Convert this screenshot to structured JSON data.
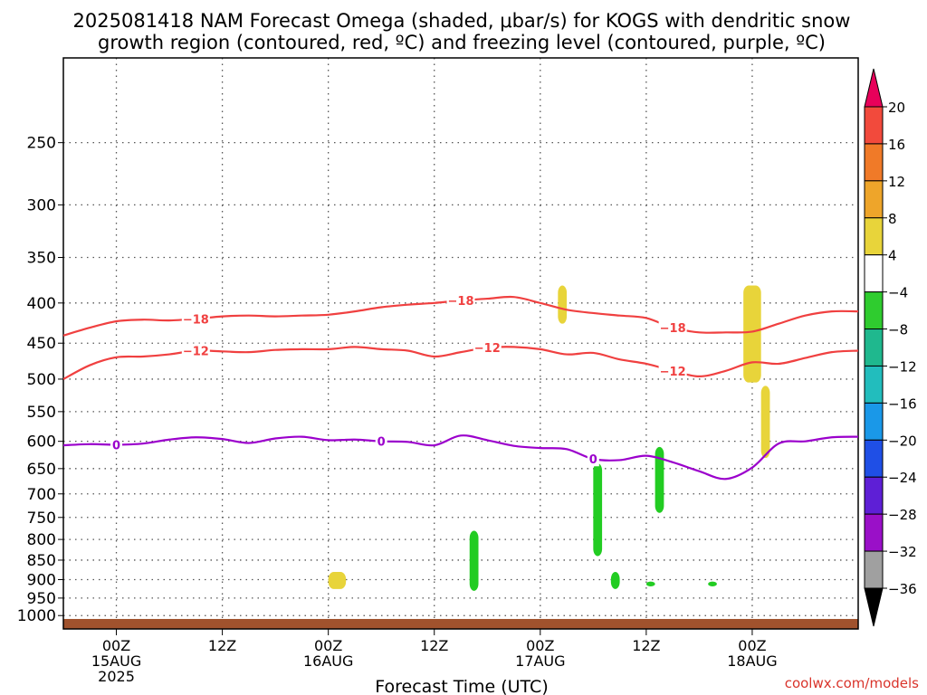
{
  "title_line1": "2025081418 NAM Forecast Omega (shaded, μbar/s) for KOGS with dendritic snow",
  "title_line2": "growth region (contoured, red, ºC) and freezing level (contoured, purple, ºC)",
  "xlabel": "Forecast Time (UTC)",
  "credit": "coolwx.com/models",
  "colors": {
    "dgz": "#f04040",
    "freezing": "#9b00cc",
    "ground": "#a0522d",
    "grid": "#555555"
  },
  "chart_data": {
    "type": "contour-time-height",
    "title": "2025081418 NAM Forecast Omega (shaded, μbar/s) for KOGS with dendritic snow growth region (contoured, red, ºC) and freezing level (contoured, purple, ºC)",
    "xlabel": "Forecast Time (UTC)",
    "ylabel": "",
    "y_scale": "log-pressure (hPa), inverted",
    "ylim": [
      1040,
      195
    ],
    "xlim": [
      "2025-08-14T18Z",
      "2025-08-18T12Z"
    ],
    "y_ticks": [
      250,
      300,
      350,
      400,
      450,
      500,
      550,
      600,
      650,
      700,
      750,
      800,
      850,
      900,
      950,
      1000
    ],
    "x_ticks": [
      {
        "t": "2025-08-15T00Z",
        "label": "00Z",
        "sub1": "15AUG",
        "sub2": "2025"
      },
      {
        "t": "2025-08-15T12Z",
        "label": "12Z",
        "sub1": "",
        "sub2": ""
      },
      {
        "t": "2025-08-16T00Z",
        "label": "00Z",
        "sub1": "16AUG",
        "sub2": ""
      },
      {
        "t": "2025-08-16T12Z",
        "label": "12Z",
        "sub1": "",
        "sub2": ""
      },
      {
        "t": "2025-08-17T00Z",
        "label": "00Z",
        "sub1": "17AUG",
        "sub2": ""
      },
      {
        "t": "2025-08-17T12Z",
        "label": "12Z",
        "sub1": "",
        "sub2": ""
      },
      {
        "t": "2025-08-18T00Z",
        "label": "00Z",
        "sub1": "18AUG",
        "sub2": ""
      }
    ],
    "grid": true,
    "colorbar": {
      "position": "right",
      "levels": [
        20,
        16,
        12,
        8,
        4,
        -4,
        -8,
        -12,
        -16,
        -20,
        -24,
        -28,
        -32,
        -36
      ],
      "colors": [
        "#e8005a",
        "#f24a3c",
        "#f07a28",
        "#eea52a",
        "#e8d43a",
        "#ffffff",
        "#2fcc2f",
        "#1fb88e",
        "#22bdbd",
        "#1a98e8",
        "#1f4fe6",
        "#5e1fd6",
        "#9a10c8",
        "#a0a0a0"
      ],
      "bottom_color": "#000000",
      "top_color": "#e8005a"
    },
    "series": [
      {
        "name": "-18",
        "x": [
          "2025-08-14T18Z",
          "2025-08-14T21Z",
          "2025-08-15T00Z",
          "2025-08-15T03Z",
          "2025-08-15T06Z",
          "2025-08-15T09Z",
          "2025-08-15T12Z",
          "2025-08-15T15Z",
          "2025-08-15T18Z",
          "2025-08-15T21Z",
          "2025-08-16T00Z",
          "2025-08-16T03Z",
          "2025-08-16T06Z",
          "2025-08-16T09Z",
          "2025-08-16T12Z",
          "2025-08-16T15Z",
          "2025-08-16T18Z",
          "2025-08-16T21Z",
          "2025-08-17T00Z",
          "2025-08-17T03Z",
          "2025-08-17T06Z",
          "2025-08-17T09Z",
          "2025-08-17T12Z",
          "2025-08-17T15Z",
          "2025-08-17T18Z",
          "2025-08-17T21Z",
          "2025-08-18T00Z",
          "2025-08-18T03Z",
          "2025-08-18T06Z",
          "2025-08-18T09Z",
          "2025-08-18T12Z"
        ],
        "y": [
          440,
          430,
          422,
          420,
          421,
          419,
          416,
          415,
          416,
          415,
          414,
          410,
          405,
          402,
          400,
          397,
          395,
          393,
          400,
          408,
          412,
          415,
          418,
          430,
          436,
          436,
          435,
          425,
          415,
          410,
          410
        ],
        "labels": [
          {
            "x": "2025-08-15T09Z",
            "text": "-18"
          },
          {
            "x": "2025-08-16T15Z",
            "text": "-18"
          },
          {
            "x": "2025-08-17T15Z",
            "text": "-18"
          }
        ]
      },
      {
        "name": "-12",
        "x": [
          "2025-08-14T18Z",
          "2025-08-14T21Z",
          "2025-08-15T00Z",
          "2025-08-15T03Z",
          "2025-08-15T06Z",
          "2025-08-15T09Z",
          "2025-08-15T12Z",
          "2025-08-15T15Z",
          "2025-08-15T18Z",
          "2025-08-15T21Z",
          "2025-08-16T00Z",
          "2025-08-16T03Z",
          "2025-08-16T06Z",
          "2025-08-16T09Z",
          "2025-08-16T12Z",
          "2025-08-16T15Z",
          "2025-08-16T18Z",
          "2025-08-16T21Z",
          "2025-08-17T00Z",
          "2025-08-17T03Z",
          "2025-08-17T06Z",
          "2025-08-17T09Z",
          "2025-08-17T12Z",
          "2025-08-17T15Z",
          "2025-08-17T18Z",
          "2025-08-17T21Z",
          "2025-08-18T00Z",
          "2025-08-18T03Z",
          "2025-08-18T06Z",
          "2025-08-18T09Z",
          "2025-08-18T12Z"
        ],
        "y": [
          500,
          480,
          469,
          468,
          465,
          460,
          461,
          462,
          459,
          458,
          458,
          455,
          458,
          460,
          468,
          462,
          456,
          455,
          458,
          465,
          463,
          472,
          478,
          488,
          496,
          488,
          476,
          478,
          470,
          462,
          460
        ],
        "labels": [
          {
            "x": "2025-08-15T09Z",
            "text": "-12"
          },
          {
            "x": "2025-08-16T18Z",
            "text": "-12"
          },
          {
            "x": "2025-08-17T15Z",
            "text": "-12"
          }
        ]
      },
      {
        "name": "0",
        "x": [
          "2025-08-14T18Z",
          "2025-08-14T21Z",
          "2025-08-15T00Z",
          "2025-08-15T03Z",
          "2025-08-15T06Z",
          "2025-08-15T09Z",
          "2025-08-15T12Z",
          "2025-08-15T15Z",
          "2025-08-15T18Z",
          "2025-08-15T21Z",
          "2025-08-16T00Z",
          "2025-08-16T03Z",
          "2025-08-16T06Z",
          "2025-08-16T09Z",
          "2025-08-16T12Z",
          "2025-08-16T15Z",
          "2025-08-16T18Z",
          "2025-08-16T21Z",
          "2025-08-17T00Z",
          "2025-08-17T03Z",
          "2025-08-17T06Z",
          "2025-08-17T09Z",
          "2025-08-17T12Z",
          "2025-08-17T15Z",
          "2025-08-17T18Z",
          "2025-08-17T21Z",
          "2025-08-18T00Z",
          "2025-08-18T03Z",
          "2025-08-18T06Z",
          "2025-08-18T09Z",
          "2025-08-18T12Z"
        ],
        "y": [
          607,
          605,
          606,
          604,
          597,
          593,
          596,
          603,
          595,
          592,
          598,
          597,
          600,
          601,
          607,
          590,
          598,
          608,
          612,
          614,
          632,
          634,
          626,
          638,
          655,
          670,
          648,
          604,
          600,
          593,
          592
        ],
        "labels": [
          {
            "x": "2025-08-15T00Z",
            "text": "0"
          },
          {
            "x": "2025-08-16T06Z",
            "text": "0"
          },
          {
            "x": "2025-08-17T06Z",
            "text": "0"
          }
        ]
      }
    ],
    "omega_regions": [
      {
        "value": 4,
        "t_start": "2025-08-16T00Z",
        "t_end": "2025-08-16T02Z",
        "p_top": 880,
        "p_bottom": 925
      },
      {
        "value": -4,
        "t_start": "2025-08-16T16Z",
        "t_end": "2025-08-16T17Z",
        "p_top": 780,
        "p_bottom": 930
      },
      {
        "value": -4,
        "t_start": "2025-08-17T06Z",
        "t_end": "2025-08-17T07Z",
        "p_top": 640,
        "p_bottom": 840
      },
      {
        "value": -4,
        "t_start": "2025-08-17T08Z",
        "t_end": "2025-08-17T09Z",
        "p_top": 880,
        "p_bottom": 925
      },
      {
        "value": -4,
        "t_start": "2025-08-17T13Z",
        "t_end": "2025-08-17T14Z",
        "p_top": 610,
        "p_bottom": 740
      },
      {
        "value": -4,
        "t_start": "2025-08-17T12Z",
        "t_end": "2025-08-17T13Z",
        "p_top": 905,
        "p_bottom": 918
      },
      {
        "value": -4,
        "t_start": "2025-08-17T19Z",
        "t_end": "2025-08-17T20Z",
        "p_top": 905,
        "p_bottom": 918
      },
      {
        "value": 4,
        "t_start": "2025-08-17T23Z",
        "t_end": "2025-08-18T01Z",
        "p_top": 380,
        "p_bottom": 505
      },
      {
        "value": 4,
        "t_start": "2025-08-18T01Z",
        "t_end": "2025-08-18T02Z",
        "p_top": 510,
        "p_bottom": 630
      },
      {
        "value": 4,
        "t_start": "2025-08-17T02Z",
        "t_end": "2025-08-17T03Z",
        "p_top": 380,
        "p_bottom": 425
      }
    ],
    "ground_level_hPa": 1010
  }
}
